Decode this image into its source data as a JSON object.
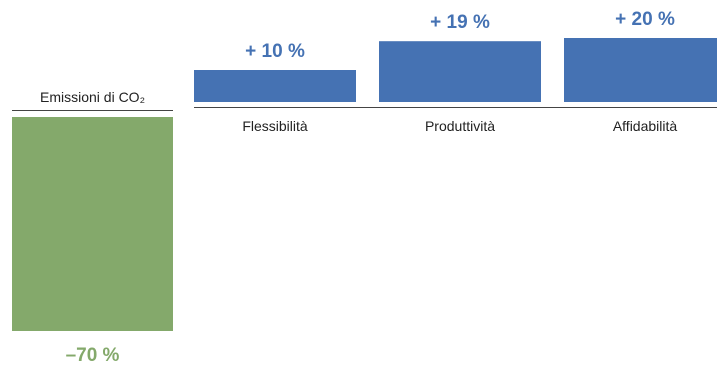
{
  "chart_data": {
    "type": "bar",
    "categories": [
      "Emissioni di CO₂",
      "Flessibilità",
      "Produttività",
      "Affidabilità"
    ],
    "values": [
      -70,
      10,
      19,
      20
    ],
    "value_labels": [
      "–70 %",
      "+ 10 %",
      "+ 19 %",
      "+ 20 %"
    ],
    "title": "",
    "xlabel": "",
    "ylabel": "",
    "ylim": [
      -70,
      20
    ],
    "grid": false,
    "legend": "none"
  },
  "colors": {
    "negative": "#84a96b",
    "positive": "#4572b3",
    "axis": "#444444",
    "category_text": "#222222"
  }
}
